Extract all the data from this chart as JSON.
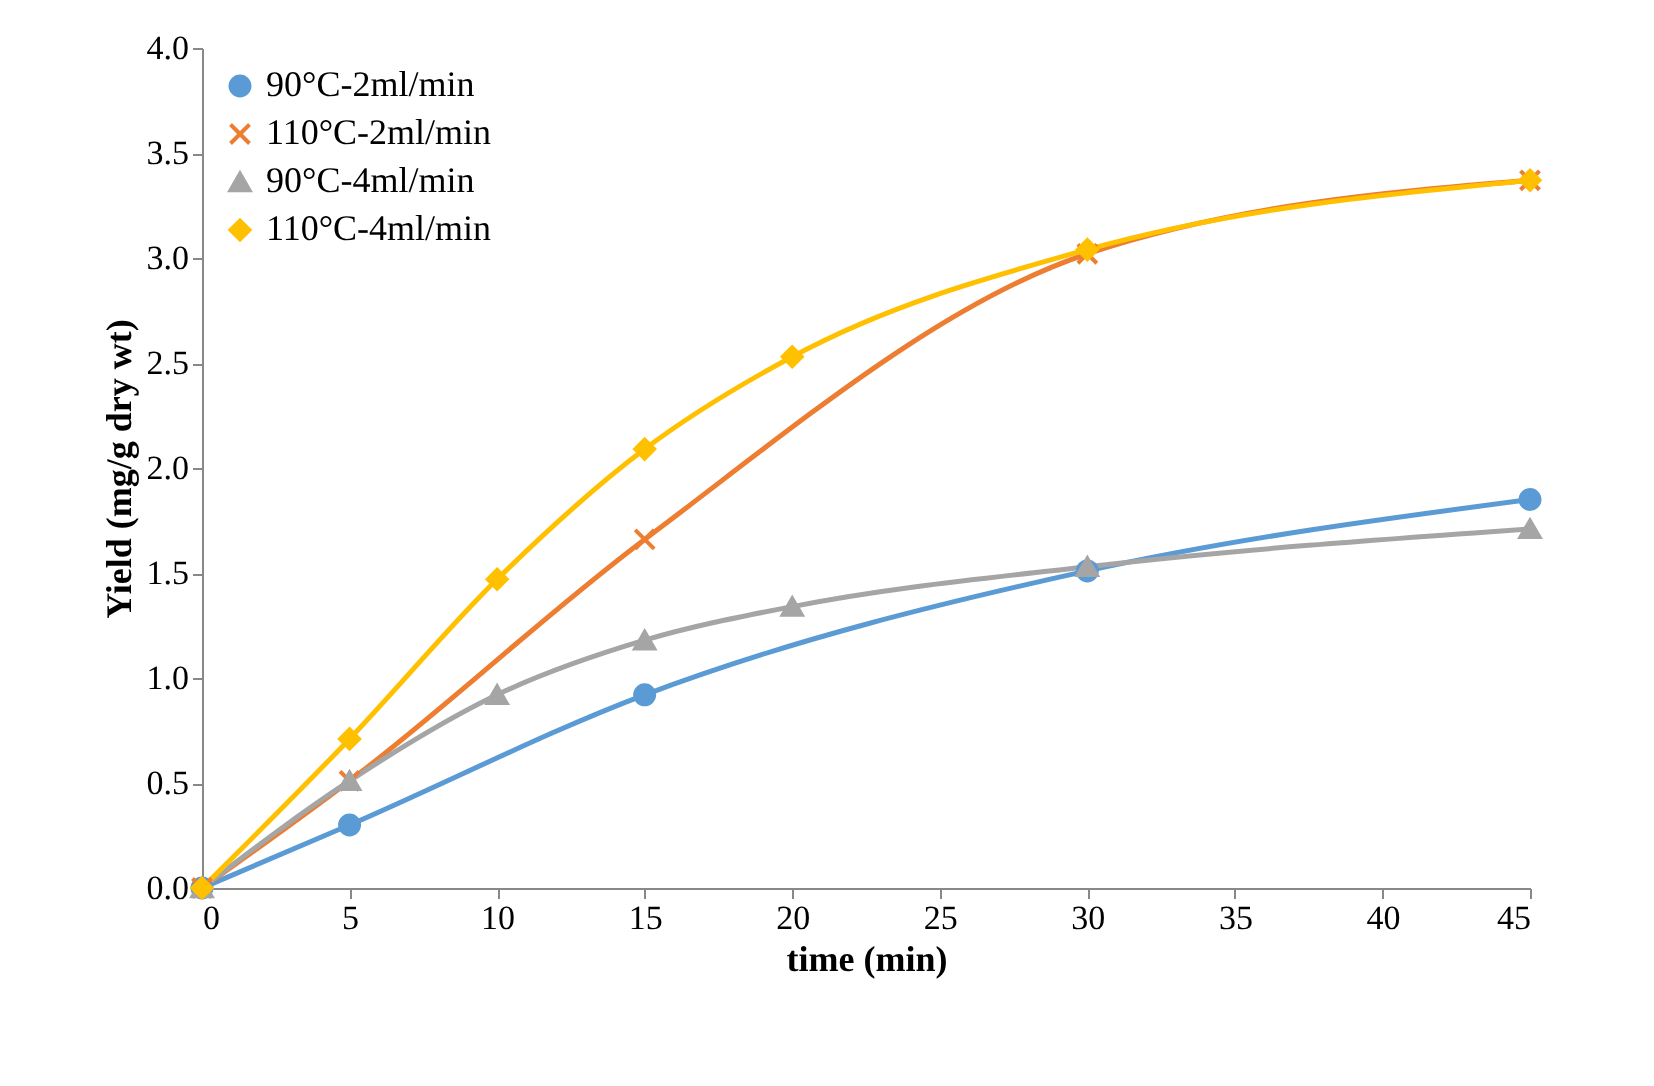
{
  "chart_data": {
    "type": "line",
    "xlabel": "time (min)",
    "ylabel": "Yield (mg/g dry wt)",
    "xlim": [
      0,
      45
    ],
    "xticks": [
      0,
      5,
      10,
      15,
      20,
      25,
      30,
      35,
      40,
      45
    ],
    "ylim": [
      0,
      4
    ],
    "yticks": [
      {
        "value": 0,
        "label": "0.0"
      },
      0.5,
      {
        "value": 1,
        "label": "1.0"
      },
      1.5,
      {
        "value": 2,
        "label": "2.0"
      },
      2.5,
      {
        "value": 3,
        "label": "3.0"
      },
      3.5,
      {
        "value": 4,
        "label": "4.0"
      }
    ],
    "grid": false,
    "legend": "top left",
    "line_style": "solid",
    "series": [
      {
        "name": "90°C-2ml/min",
        "color": "#5b9bd5",
        "marker": "circle",
        "x": [
          0,
          5,
          15,
          30,
          45
        ],
        "values": [
          0,
          0.3,
          0.92,
          1.51,
          1.85
        ]
      },
      {
        "name": "110°C-2ml/min",
        "color": "#ed7d31",
        "marker": "cross",
        "x": [
          0,
          5,
          15,
          30,
          45
        ],
        "values": [
          0,
          0.51,
          1.66,
          3.02,
          3.37
        ]
      },
      {
        "name": "90°C-4ml/min",
        "color": "#a5a5a5",
        "marker": "triangle",
        "x": [
          0,
          5,
          10,
          15,
          20,
          30,
          45
        ],
        "values": [
          0,
          0.51,
          0.92,
          1.18,
          1.34,
          1.53,
          1.71
        ]
      },
      {
        "name": "110°C-4ml/min",
        "color": "#ffc000",
        "marker": "diamond",
        "x": [
          0,
          5,
          10,
          15,
          20,
          30,
          45
        ],
        "values": [
          0,
          0.71,
          1.47,
          2.09,
          2.53,
          3.04,
          3.37
        ]
      }
    ]
  }
}
